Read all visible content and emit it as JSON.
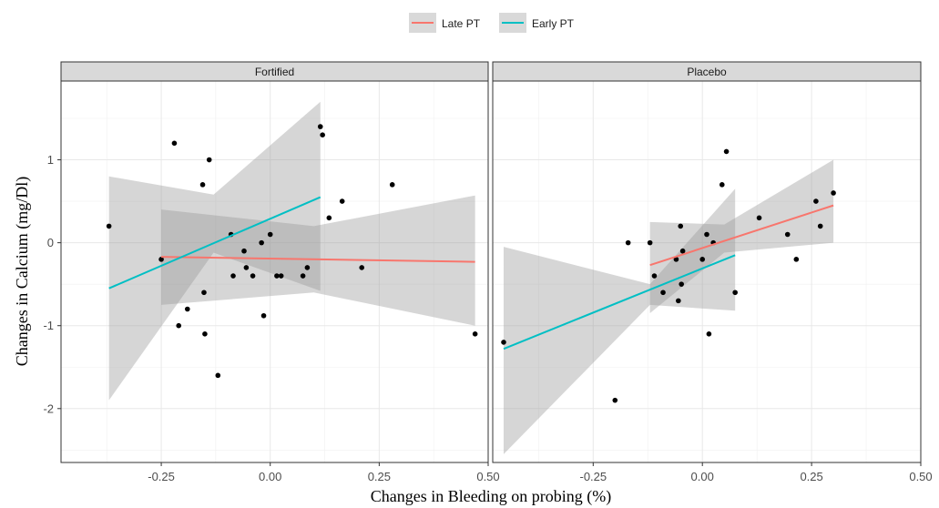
{
  "chart_data": {
    "type": "scatter",
    "xlabel": "Changes in Bleeding on probing (%)",
    "ylabel": "Changes in Calcium (mg/Dl)",
    "xlim": [
      -0.48,
      0.5
    ],
    "ylim": [
      -2.65,
      1.95
    ],
    "x_ticks": [
      -0.25,
      0.0,
      0.25,
      0.5
    ],
    "x_tick_labels": [
      "-0.25",
      "0.00",
      "0.25",
      "0.50"
    ],
    "y_ticks": [
      -2,
      -1,
      0,
      1
    ],
    "y_tick_labels": [
      "-2",
      "-1",
      "0",
      "1"
    ],
    "grid": true,
    "legend_position": "top-center",
    "legend": [
      {
        "name": "Late PT",
        "color": "#F8766D"
      },
      {
        "name": "Early PT",
        "color": "#00BFC4"
      }
    ],
    "panels": [
      {
        "title": "Fortified",
        "points": [
          [
            -0.37,
            0.2
          ],
          [
            -0.25,
            -0.2
          ],
          [
            -0.22,
            1.2
          ],
          [
            -0.21,
            -1.0
          ],
          [
            -0.19,
            -0.8
          ],
          [
            -0.155,
            0.7
          ],
          [
            -0.152,
            -0.6
          ],
          [
            -0.15,
            -1.1
          ],
          [
            -0.14,
            1.0
          ],
          [
            -0.12,
            -1.6
          ],
          [
            -0.09,
            0.1
          ],
          [
            -0.085,
            -0.4
          ],
          [
            -0.06,
            -0.1
          ],
          [
            -0.055,
            -0.3
          ],
          [
            -0.04,
            -0.4
          ],
          [
            -0.02,
            0.0
          ],
          [
            -0.015,
            -0.88
          ],
          [
            0.0,
            0.1
          ],
          [
            0.015,
            -0.4
          ],
          [
            0.025,
            -0.4
          ],
          [
            0.075,
            -0.4
          ],
          [
            0.085,
            -0.3
          ],
          [
            0.115,
            1.4
          ],
          [
            0.12,
            1.3
          ],
          [
            0.135,
            0.3
          ],
          [
            0.165,
            0.5
          ],
          [
            0.21,
            -0.3
          ],
          [
            0.28,
            0.7
          ],
          [
            0.47,
            -1.1
          ]
        ],
        "fits": [
          {
            "series": "Late PT",
            "x": [
              -0.25,
              0.47
            ],
            "y": [
              -0.17,
              -0.23
            ],
            "band_lower": [
              -0.75,
              -0.6,
              -1.0
            ],
            "band_upper": [
              0.4,
              0.2,
              0.57
            ],
            "band_x": [
              -0.25,
              0.1,
              0.47
            ]
          },
          {
            "series": "Early PT",
            "x": [
              -0.37,
              0.115
            ],
            "y": [
              -0.55,
              0.55
            ],
            "band_lower": [
              -1.9,
              -0.12,
              -0.58
            ],
            "band_upper": [
              0.8,
              0.58,
              1.7
            ],
            "band_x": [
              -0.37,
              -0.13,
              0.115
            ]
          }
        ]
      },
      {
        "title": "Placebo",
        "points": [
          [
            -0.455,
            -1.2
          ],
          [
            -0.2,
            -1.9
          ],
          [
            -0.17,
            0.0
          ],
          [
            -0.12,
            0.0
          ],
          [
            -0.11,
            -0.4
          ],
          [
            -0.09,
            -0.6
          ],
          [
            -0.06,
            -0.2
          ],
          [
            -0.055,
            -0.7
          ],
          [
            -0.05,
            0.2
          ],
          [
            -0.048,
            -0.5
          ],
          [
            -0.045,
            -0.1
          ],
          [
            0.0,
            -0.2
          ],
          [
            0.01,
            0.1
          ],
          [
            0.015,
            -1.1
          ],
          [
            0.025,
            0.0
          ],
          [
            0.045,
            0.7
          ],
          [
            0.055,
            1.1
          ],
          [
            0.075,
            -0.6
          ],
          [
            0.13,
            0.3
          ],
          [
            0.195,
            0.1
          ],
          [
            0.215,
            -0.2
          ],
          [
            0.26,
            0.5
          ],
          [
            0.27,
            0.2
          ],
          [
            0.3,
            0.6
          ]
        ],
        "fits": [
          {
            "series": "Late PT",
            "x": [
              -0.12,
              0.3
            ],
            "y": [
              -0.27,
              0.45
            ],
            "band_lower": [
              -0.85,
              -0.12,
              0.0
            ],
            "band_upper": [
              0.25,
              0.22,
              1.0
            ],
            "band_x": [
              -0.12,
              0.05,
              0.3
            ]
          },
          {
            "series": "Early PT",
            "x": [
              -0.455,
              0.075
            ],
            "y": [
              -1.28,
              -0.15
            ],
            "band_lower": [
              -2.55,
              -0.75,
              -0.82
            ],
            "band_upper": [
              -0.05,
              -0.5,
              0.65
            ],
            "band_x": [
              -0.455,
              -0.12,
              0.075
            ]
          }
        ]
      }
    ]
  }
}
